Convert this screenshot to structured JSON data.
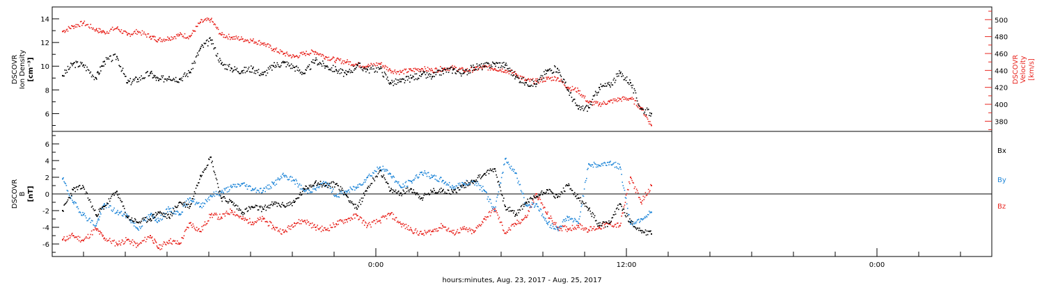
{
  "xlabel": "hours:minutes, Aug. 23, 2017 - Aug. 25, 2017",
  "colors": {
    "black": "#000000",
    "red": "#e8251f",
    "blue": "#1f86d8"
  },
  "chart_data": [
    {
      "type": "scatter",
      "panel": "top",
      "ylabel_left": [
        "DSCOVR",
        "Ion Density",
        "[cm⁻³]"
      ],
      "ylabel_right": [
        "DSCOVR",
        "Velocity",
        "[km/s]"
      ],
      "ylim_left": [
        4.5,
        15
      ],
      "ylim_right": [
        368,
        515
      ],
      "yticks_left": [
        6,
        8,
        10,
        12,
        14
      ],
      "yticks_right": [
        380,
        400,
        420,
        440,
        460,
        480,
        500
      ],
      "xlim_hours": [
        -15.5,
        29.5
      ],
      "xticks": [
        {
          "h": 0,
          "label": "0:00"
        },
        {
          "h": 12,
          "label": "12:00"
        },
        {
          "h": 24,
          "label": "0:00"
        }
      ],
      "series": [
        {
          "axis": "left",
          "color": "black",
          "x": [
            -15.0,
            -14.5,
            -14.0,
            -13.4,
            -13.0,
            -12.4,
            -11.9,
            -11.4,
            -10.8,
            -10.4,
            -9.9,
            -9.4,
            -8.9,
            -8.4,
            -7.9,
            -7.4,
            -6.9,
            -6.4,
            -5.9,
            -5.4,
            -4.9,
            -4.4,
            -3.9,
            -3.4,
            -2.9,
            -2.4,
            -1.9,
            -1.4,
            -0.9,
            -0.4,
            0.2,
            0.7,
            1.2,
            1.7,
            2.2,
            2.7,
            3.2,
            3.7,
            4.2,
            4.7,
            5.2,
            5.7,
            6.2,
            6.7,
            7.2,
            7.7,
            8.2,
            8.7,
            9.2,
            9.7,
            10.2,
            10.7,
            11.2,
            11.7,
            12.2,
            12.7,
            13.2
          ],
          "y": [
            9.2,
            10.2,
            10.1,
            9.0,
            10.4,
            10.8,
            8.6,
            8.9,
            9.4,
            8.8,
            9.1,
            8.9,
            9.5,
            11.5,
            12.2,
            10.2,
            9.8,
            9.6,
            9.8,
            9.3,
            10.0,
            10.3,
            9.9,
            9.4,
            10.5,
            10.0,
            9.7,
            9.3,
            10.1,
            9.7,
            9.8,
            8.6,
            8.7,
            9.0,
            9.3,
            9.1,
            9.6,
            9.7,
            9.4,
            9.9,
            10.0,
            10.2,
            10.1,
            9.1,
            8.6,
            8.5,
            9.6,
            9.8,
            8.0,
            6.4,
            6.5,
            8.2,
            8.4,
            9.4,
            8.6,
            6.4,
            6.0
          ]
        },
        {
          "axis": "right",
          "color": "red",
          "x": [
            -15.0,
            -14.5,
            -14.0,
            -13.4,
            -13.0,
            -12.4,
            -11.9,
            -11.4,
            -10.8,
            -10.4,
            -9.9,
            -9.4,
            -8.9,
            -8.4,
            -7.9,
            -7.4,
            -6.9,
            -6.4,
            -5.9,
            -5.4,
            -4.9,
            -4.4,
            -3.9,
            -3.4,
            -2.9,
            -2.4,
            -1.9,
            -1.4,
            -0.9,
            -0.4,
            0.2,
            0.7,
            1.2,
            1.7,
            2.2,
            2.7,
            3.2,
            3.7,
            4.2,
            4.7,
            5.2,
            5.7,
            6.2,
            6.7,
            7.2,
            7.7,
            8.2,
            8.7,
            9.2,
            9.7,
            10.2,
            10.7,
            11.2,
            11.7,
            12.2,
            12.7,
            13.2
          ],
          "y": [
            486,
            492,
            496,
            488,
            485,
            490,
            482,
            486,
            480,
            476,
            478,
            482,
            480,
            497,
            500,
            482,
            479,
            477,
            475,
            472,
            465,
            460,
            456,
            460,
            462,
            456,
            452,
            450,
            447,
            445,
            448,
            440,
            438,
            440,
            442,
            440,
            442,
            443,
            440,
            441,
            444,
            442,
            440,
            436,
            428,
            427,
            430,
            431,
            420,
            416,
            402,
            400,
            403,
            406,
            407,
            396,
            375
          ]
        }
      ]
    },
    {
      "type": "scatter",
      "panel": "bottom",
      "ylabel_left": [
        "DSCOVR",
        "B",
        "[nT]"
      ],
      "ylim_left": [
        -7.5,
        7.5
      ],
      "yticks_left": [
        -6,
        -4,
        -2,
        0,
        2,
        4,
        6
      ],
      "zero_line": true,
      "xlim_hours": [
        -15.5,
        29.5
      ],
      "legend": [
        "Bx",
        "By",
        "Bz"
      ],
      "series": [
        {
          "name": "Bx",
          "color": "black",
          "x": [
            -15.0,
            -14.5,
            -14.0,
            -13.4,
            -13.0,
            -12.4,
            -11.9,
            -11.4,
            -10.8,
            -10.4,
            -9.9,
            -9.4,
            -8.9,
            -8.4,
            -7.9,
            -7.4,
            -6.9,
            -6.4,
            -5.9,
            -5.4,
            -4.9,
            -4.4,
            -3.9,
            -3.4,
            -2.9,
            -2.4,
            -1.9,
            -1.4,
            -0.9,
            -0.4,
            0.2,
            0.7,
            1.2,
            1.7,
            2.2,
            2.7,
            3.2,
            3.7,
            4.2,
            4.7,
            5.2,
            5.7,
            6.2,
            6.7,
            7.2,
            7.7,
            8.2,
            8.7,
            9.2,
            9.7,
            10.2,
            10.7,
            11.2,
            11.7,
            12.2,
            12.7,
            13.2
          ],
          "y": [
            -2.0,
            0.5,
            0.8,
            -2.5,
            -1.5,
            0.3,
            -2.8,
            -3.4,
            -3.0,
            -2.2,
            -2.8,
            -1.0,
            -1.5,
            2.2,
            4.4,
            -0.5,
            -1.0,
            -2.2,
            -1.6,
            -1.8,
            -1.2,
            -1.4,
            -1.0,
            0.6,
            1.4,
            1.0,
            1.2,
            -0.2,
            -1.8,
            0.7,
            2.8,
            0.4,
            0.1,
            0.6,
            -0.5,
            0.3,
            0.4,
            0.2,
            1.0,
            1.6,
            2.4,
            3.0,
            -1.5,
            -2.5,
            -1.0,
            -0.3,
            0.5,
            -0.4,
            1.0,
            -0.5,
            -1.8,
            -3.8,
            -3.5,
            -1.2,
            -3.4,
            -4.4,
            -4.8
          ]
        },
        {
          "name": "By",
          "color": "blue",
          "x": [
            -15.0,
            -14.5,
            -14.0,
            -13.4,
            -13.0,
            -12.4,
            -11.9,
            -11.4,
            -10.8,
            -10.4,
            -9.9,
            -9.4,
            -8.9,
            -8.4,
            -7.9,
            -7.4,
            -6.9,
            -6.4,
            -5.9,
            -5.4,
            -4.9,
            -4.4,
            -3.9,
            -3.4,
            -2.9,
            -2.4,
            -1.9,
            -1.4,
            -0.9,
            -0.4,
            0.2,
            0.7,
            1.2,
            1.7,
            2.2,
            2.7,
            3.2,
            3.7,
            4.2,
            4.7,
            5.2,
            5.7,
            6.2,
            6.7,
            7.2,
            7.7,
            8.2,
            8.7,
            9.2,
            9.7,
            10.2,
            10.7,
            11.2,
            11.7,
            12.2,
            12.7,
            13.2
          ],
          "y": [
            1.8,
            -1.0,
            -2.5,
            -3.8,
            -1.2,
            -2.2,
            -2.6,
            -4.2,
            -2.5,
            -3.2,
            -1.8,
            -2.4,
            -0.5,
            -1.5,
            -0.2,
            0.2,
            0.8,
            1.2,
            0.6,
            0.4,
            1.2,
            2.2,
            1.6,
            0.3,
            0.6,
            1.4,
            -0.2,
            0.3,
            0.8,
            2.0,
            3.2,
            2.4,
            0.8,
            1.5,
            2.6,
            2.0,
            1.6,
            0.8,
            1.2,
            1.5,
            0.4,
            -2.0,
            4.2,
            2.5,
            -1.4,
            -1.2,
            -3.5,
            -4.2,
            -2.8,
            -3.5,
            3.6,
            3.4,
            3.8,
            3.2,
            -3.6,
            -3.0,
            -2.2
          ]
        },
        {
          "name": "Bz",
          "color": "red",
          "x": [
            -15.0,
            -14.5,
            -14.0,
            -13.4,
            -13.0,
            -12.4,
            -11.9,
            -11.4,
            -10.8,
            -10.4,
            -9.9,
            -9.4,
            -8.9,
            -8.4,
            -7.9,
            -7.4,
            -6.9,
            -6.4,
            -5.9,
            -5.4,
            -4.9,
            -4.4,
            -3.9,
            -3.4,
            -2.9,
            -2.4,
            -1.9,
            -1.4,
            -0.9,
            -0.4,
            0.2,
            0.7,
            1.2,
            1.7,
            2.2,
            2.7,
            3.2,
            3.7,
            4.2,
            4.7,
            5.2,
            5.7,
            6.2,
            6.7,
            7.2,
            7.7,
            8.2,
            8.7,
            9.2,
            9.7,
            10.2,
            10.7,
            11.2,
            11.7,
            12.2,
            12.7,
            13.2
          ],
          "y": [
            -5.5,
            -5.0,
            -5.6,
            -4.2,
            -5.3,
            -6.0,
            -5.5,
            -6.2,
            -5.0,
            -6.5,
            -5.6,
            -6.0,
            -3.5,
            -4.5,
            -2.5,
            -2.8,
            -2.0,
            -3.0,
            -3.4,
            -3.0,
            -4.0,
            -4.6,
            -3.5,
            -3.2,
            -4.0,
            -4.3,
            -3.6,
            -3.1,
            -2.6,
            -3.8,
            -3.2,
            -2.4,
            -3.6,
            -4.3,
            -4.8,
            -4.5,
            -3.8,
            -4.7,
            -4.2,
            -4.6,
            -3.0,
            -1.8,
            -4.7,
            -3.6,
            -2.8,
            0.0,
            -2.4,
            -4.0,
            -4.2,
            -3.8,
            -4.3,
            -4.0,
            -3.6,
            -3.8,
            2.0,
            -1.0,
            1.0
          ]
        }
      ]
    }
  ]
}
